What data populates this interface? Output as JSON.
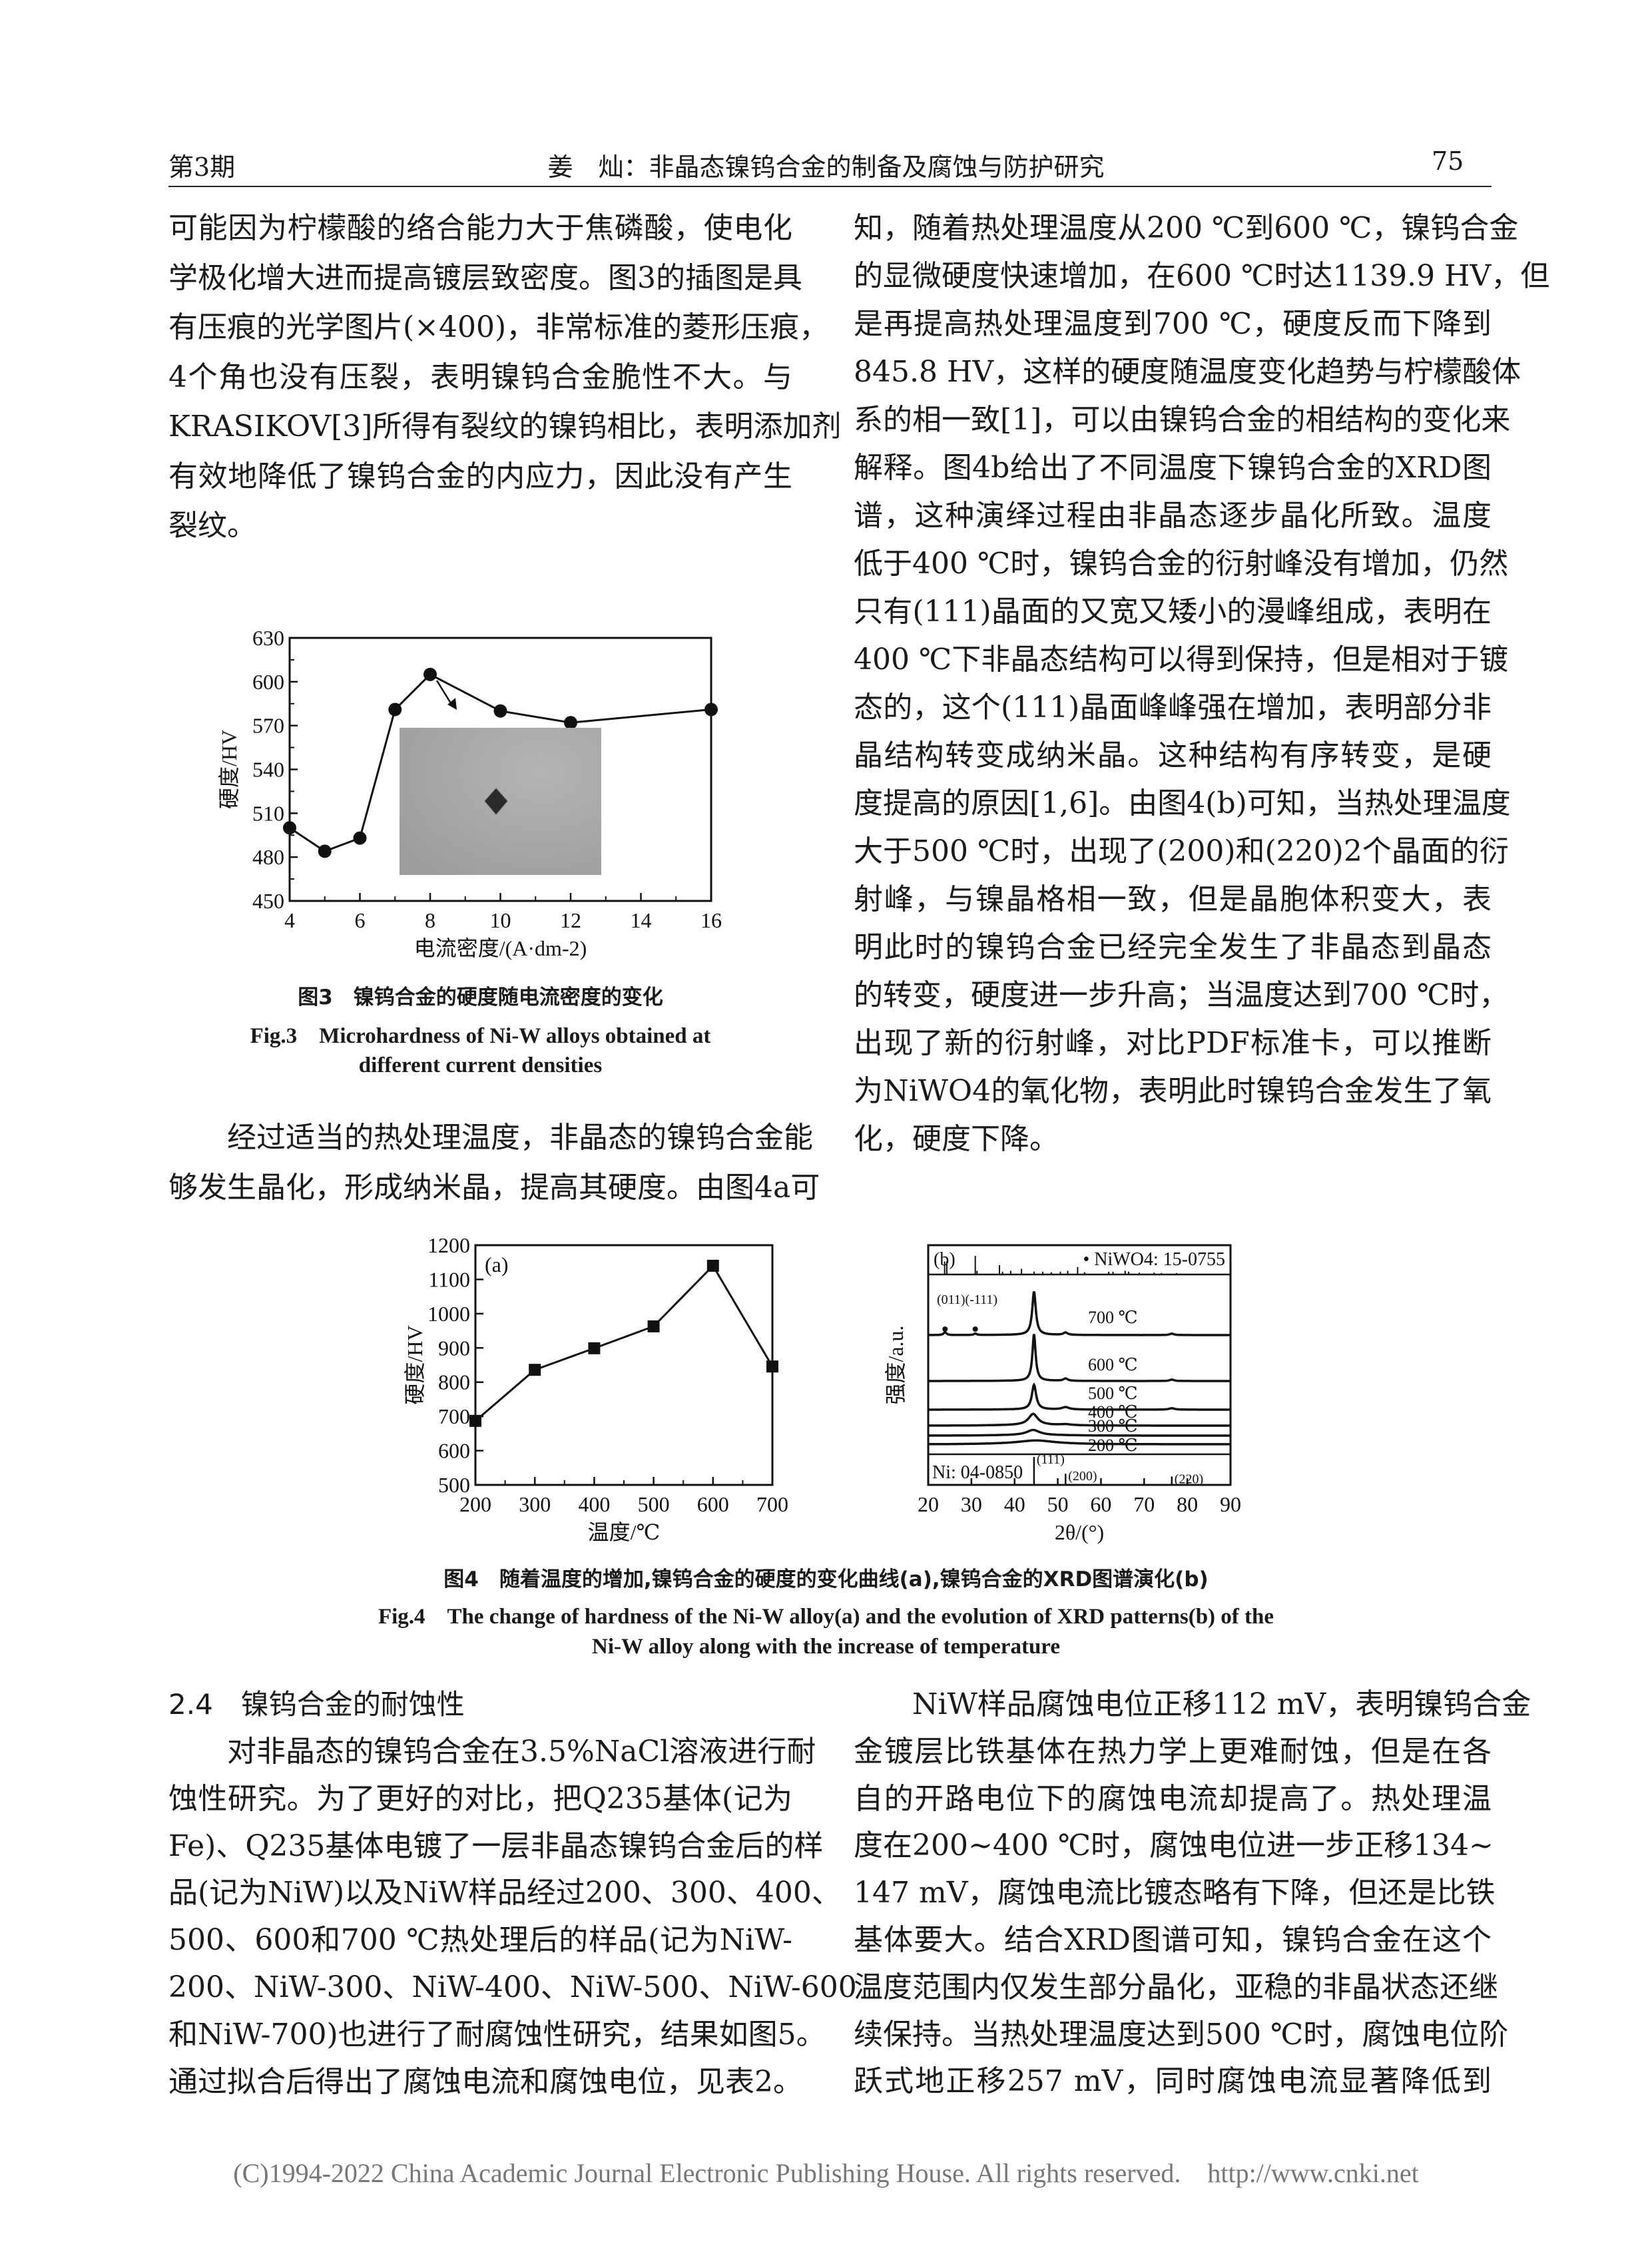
{
  "header": {
    "issue": "第3期",
    "title": "姜　灿：非晶态镍钨合金的制备及腐蚀与防护研究",
    "page": "75"
  },
  "left_top": [
    "可能因为柠檬酸的络合能力大于焦磷酸，使电化",
    "学极化增大进而提高镀层致密度。图3的插图是具",
    "有压痕的光学图片(×400)，非常标准的菱形压痕，",
    "4个角也没有压裂，表明镍钨合金脆性不大。与",
    "KRASIKOV[3]所得有裂纹的镍钨相比，表明添加剂",
    "有效地降低了镍钨合金的内应力，因此没有产生",
    "裂纹。"
  ],
  "left_mid": [
    "经过适当的热处理温度，非晶态的镍钨合金能",
    "够发生晶化，形成纳米晶，提高其硬度。由图4a可"
  ],
  "right_top": [
    "知，随着热处理温度从200 ℃到600 ℃，镍钨合金",
    "的显微硬度快速增加，在600 ℃时达1139.9 HV，但",
    "是再提高热处理温度到700 ℃，硬度反而下降到",
    "845.8 HV，这样的硬度随温度变化趋势与柠檬酸体",
    "系的相一致[1]，可以由镍钨合金的相结构的变化来",
    "解释。图4b给出了不同温度下镍钨合金的XRD图",
    "谱，这种演绎过程由非晶态逐步晶化所致。温度",
    "低于400 ℃时，镍钨合金的衍射峰没有增加，仍然",
    "只有(111)晶面的又宽又矮小的漫峰组成，表明在",
    "400 ℃下非晶态结构可以得到保持，但是相对于镀",
    "态的，这个(111)晶面峰峰强在增加，表明部分非",
    "晶结构转变成纳米晶。这种结构有序转变，是硬",
    "度提高的原因[1,6]。由图4(b)可知，当热处理温度",
    "大于500 ℃时，出现了(200)和(220)2个晶面的衍",
    "射峰，与镍晶格相一致，但是晶胞体积变大，表",
    "明此时的镍钨合金已经完全发生了非晶态到晶态",
    "的转变，硬度进一步升高；当温度达到700 ℃时，",
    "出现了新的衍射峰，对比PDF标准卡，可以推断",
    "为NiWO4的氧化物，表明此时镍钨合金发生了氧",
    "化，硬度下降。"
  ],
  "section": {
    "heading": "2.4　镍钨合金的耐蚀性"
  },
  "left_bottom": [
    "对非晶态的镍钨合金在3.5%NaCl溶液进行耐",
    "蚀性研究。为了更好的对比，把Q235基体(记为",
    "Fe)、Q235基体电镀了一层非晶态镍钨合金后的样",
    "品(记为NiW)以及NiW样品经过200、300、400、",
    "500、600和700 ℃热处理后的样品(记为NiW-",
    "200、NiW-300、NiW-400、NiW-500、NiW-600",
    "和NiW-700)也进行了耐腐蚀性研究，结果如图5。",
    "通过拟合后得出了腐蚀电流和腐蚀电位，见表2。"
  ],
  "right_bottom": [
    "NiW样品腐蚀电位正移112 mV，表明镍钨合金",
    "金镀层比铁基体在热力学上更难耐蚀，但是在各",
    "自的开路电位下的腐蚀电流却提高了。热处理温",
    "度在200~400 ℃时，腐蚀电位进一步正移134~",
    "147 mV，腐蚀电流比镀态略有下降，但还是比铁",
    "基体要大。结合XRD图谱可知，镍钨合金在这个",
    "温度范围内仅发生部分晶化，亚稳的非晶状态还继",
    "续保持。当热处理温度达到500 ℃时，腐蚀电位阶",
    "跃式地正移257 mV，同时腐蚀电流显著降低到"
  ],
  "fig3": {
    "caption_cn": "图3　镍钨合金的硬度随电流密度的变化",
    "caption_en1": "Fig.3　Microhardness of Ni-W alloys obtained at",
    "caption_en2": "different current densities"
  },
  "fig4": {
    "caption_cn": "图4　随着温度的增加,镍钨合金的硬度的变化曲线(a),镍钨合金的XRD图谱演化(b)",
    "caption_en1": "Fig.4　The change of hardness of the Ni-W alloy(a) and the evolution of XRD patterns(b) of the",
    "caption_en2": "Ni-W alloy along with the increase of temperature"
  },
  "chart_data": [
    {
      "type": "line",
      "marker": "circle",
      "xlabel": "电流密度/(A·dm-2)",
      "ylabel": "硬度/HV",
      "xlim": [
        4,
        16
      ],
      "ylim": [
        450,
        630
      ],
      "xticks": [
        4,
        6,
        8,
        10,
        12,
        14,
        16
      ],
      "yticks": [
        450,
        480,
        510,
        540,
        570,
        600,
        630
      ],
      "x": [
        4,
        5,
        6,
        7,
        8,
        10,
        12,
        16
      ],
      "y": [
        500,
        484,
        493,
        581,
        605,
        580,
        572,
        581
      ],
      "inset": "optical micrograph of diamond indentation (×400), arrow from point at 8 A·dm-2"
    },
    {
      "type": "line",
      "marker": "square",
      "panel_label": "(a)",
      "xlabel": "温度/℃",
      "ylabel": "硬度/HV",
      "xlim": [
        200,
        700
      ],
      "ylim": [
        500,
        1200
      ],
      "xticks": [
        200,
        300,
        400,
        500,
        600,
        700
      ],
      "yticks": [
        500,
        600,
        700,
        800,
        900,
        1000,
        1100,
        1200
      ],
      "x": [
        200,
        300,
        400,
        500,
        600,
        700
      ],
      "y": [
        687,
        836,
        899,
        963,
        1139.9,
        845.8
      ]
    },
    {
      "type": "line",
      "panel_label": "(b)",
      "xlabel": "2θ/(°)",
      "ylabel": "强度/a.u.",
      "xlim": [
        20,
        90
      ],
      "xticks": [
        20,
        30,
        40,
        50,
        60,
        70,
        80,
        90
      ],
      "series": [
        {
          "name": "700 ℃",
          "peaks": [
            [
              44.5,
              93,
              0.5
            ],
            [
              51.8,
              5,
              0.6
            ],
            [
              76.4,
              3,
              0.6
            ],
            [
              23.9,
              6,
              0.4
            ],
            [
              30.9,
              3,
              0.4
            ]
          ]
        },
        {
          "name": "600 ℃",
          "peaks": [
            [
              44.5,
              100,
              0.45
            ],
            [
              51.8,
              5,
              0.6
            ],
            [
              76.4,
              3,
              0.6
            ]
          ]
        },
        {
          "name": "500 ℃",
          "peaks": [
            [
              44.5,
              53,
              0.6
            ],
            [
              51.8,
              5,
              1.0
            ],
            [
              76.4,
              3,
              0.8
            ]
          ]
        },
        {
          "name": "400 ℃",
          "peaks": [
            [
              44.3,
              24,
              1.3
            ],
            [
              51.8,
              2,
              1.5
            ]
          ]
        },
        {
          "name": "300 ℃",
          "peaks": [
            [
              44.3,
              11,
              1.8
            ]
          ]
        },
        {
          "name": "200 ℃",
          "peaks": [
            [
              45,
              7,
              5
            ]
          ]
        }
      ],
      "ref_top": {
        "label": "• NiWO4: 15-0755",
        "sticks": [
          [
            23.8,
            0.7
          ],
          [
            24.3,
            0.7
          ],
          [
            30.9,
            1
          ],
          [
            31.3,
            0.2
          ],
          [
            36.5,
            0.5
          ],
          [
            37.2,
            0.15
          ],
          [
            39.1,
            0.2
          ],
          [
            41.6,
            0.3
          ],
          [
            44.5,
            0.15
          ],
          [
            46.5,
            0.15
          ],
          [
            48.5,
            0.12
          ],
          [
            50.6,
            0.15
          ],
          [
            52.3,
            0.2
          ],
          [
            54.6,
            0.4
          ],
          [
            56.2,
            0.12
          ],
          [
            61.8,
            0.15
          ],
          [
            62.8,
            0.15
          ],
          [
            65.6,
            0.2
          ],
          [
            66.4,
            0.15
          ],
          [
            68.9,
            0.1
          ],
          [
            72.3,
            0.1
          ],
          [
            74,
            0.08
          ],
          [
            77.5,
            0.08
          ]
        ]
      },
      "ref_bottom": {
        "label": "Ni: 04-0850",
        "sticks": [
          [
            44.5,
            1,
            "(111)"
          ],
          [
            51.8,
            0.4,
            "(200)"
          ],
          [
            76.4,
            0.3,
            "(220)"
          ]
        ]
      },
      "annotations": {
        "markers": "(011)(-111)",
        "marker_x": [
          23.9,
          30.9
        ]
      }
    }
  ],
  "footer": {
    "copyright": "(C)1994-2022 China Academic Journal Electronic Publishing House. All rights reserved.",
    "url": "http://www.cnki.net"
  }
}
